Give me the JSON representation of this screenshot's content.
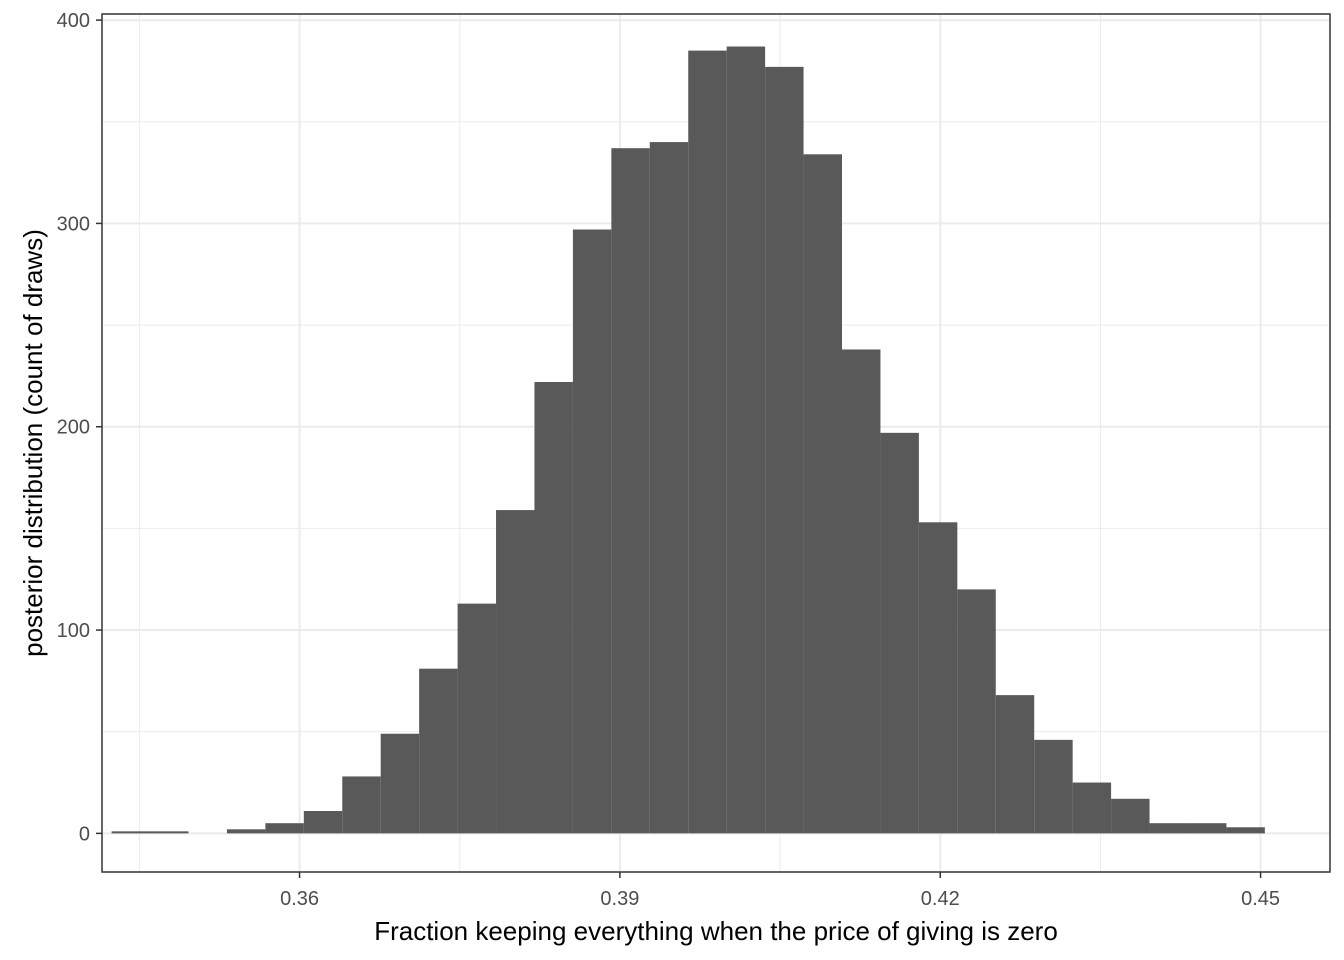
{
  "chart_data": {
    "type": "bar",
    "subtype": "histogram",
    "title": "",
    "xlabel": "Fraction keeping everything when the price of giving is zero",
    "ylabel": "posterior distribution (count of draws)",
    "xlim": [
      0.3415,
      0.4565
    ],
    "ylim": [
      -19,
      403
    ],
    "x_ticks": [
      0.36,
      0.39,
      0.42,
      0.45
    ],
    "x_tick_labels": [
      "0.36",
      "0.39",
      "0.42",
      "0.45"
    ],
    "y_ticks": [
      0,
      100,
      200,
      300,
      400
    ],
    "y_tick_labels": [
      "0",
      "100",
      "200",
      "300",
      "400"
    ],
    "grid": true,
    "legend": null,
    "bar_color": "#595959",
    "bin_width": 0.0036,
    "bin_start": 0.3424,
    "bins": [
      {
        "x_left": 0.3424,
        "count": 1
      },
      {
        "x_left": 0.346,
        "count": 1
      },
      {
        "x_left": 0.3496,
        "count": 0
      },
      {
        "x_left": 0.3532,
        "count": 2
      },
      {
        "x_left": 0.3568,
        "count": 5
      },
      {
        "x_left": 0.3604,
        "count": 11
      },
      {
        "x_left": 0.364,
        "count": 28
      },
      {
        "x_left": 0.3676,
        "count": 49
      },
      {
        "x_left": 0.3712,
        "count": 81
      },
      {
        "x_left": 0.3748,
        "count": 113
      },
      {
        "x_left": 0.3784,
        "count": 159
      },
      {
        "x_left": 0.382,
        "count": 222
      },
      {
        "x_left": 0.3856,
        "count": 297
      },
      {
        "x_left": 0.3892,
        "count": 337
      },
      {
        "x_left": 0.3928,
        "count": 340
      },
      {
        "x_left": 0.3964,
        "count": 385
      },
      {
        "x_left": 0.4,
        "count": 387
      },
      {
        "x_left": 0.4036,
        "count": 377
      },
      {
        "x_left": 0.4072,
        "count": 334
      },
      {
        "x_left": 0.4108,
        "count": 238
      },
      {
        "x_left": 0.4144,
        "count": 197
      },
      {
        "x_left": 0.418,
        "count": 153
      },
      {
        "x_left": 0.4216,
        "count": 120
      },
      {
        "x_left": 0.4252,
        "count": 68
      },
      {
        "x_left": 0.4288,
        "count": 46
      },
      {
        "x_left": 0.4324,
        "count": 25
      },
      {
        "x_left": 0.436,
        "count": 17
      },
      {
        "x_left": 0.4396,
        "count": 5
      },
      {
        "x_left": 0.4432,
        "count": 5
      },
      {
        "x_left": 0.4468,
        "count": 3
      }
    ]
  }
}
